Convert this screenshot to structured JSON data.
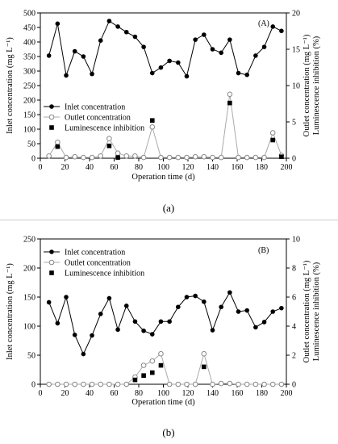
{
  "chart_data": [
    {
      "type": "line",
      "panel_label": "(A)",
      "sublabel": "(a)",
      "xlabel": "Operation time (d)",
      "ylabel_left": "Inlet concentration  (mg L⁻¹)",
      "ylabel_right": "Outlet concentration (mg L⁻¹)\nLuminescence inhibition (%)",
      "xlim": [
        0,
        200
      ],
      "xticks": [
        0,
        20,
        40,
        60,
        80,
        100,
        120,
        140,
        160,
        180,
        200
      ],
      "ylim_left": [
        0,
        500
      ],
      "yticks_left": [
        0,
        50,
        100,
        150,
        200,
        250,
        300,
        350,
        400,
        450,
        500
      ],
      "ylim_right": [
        0,
        20
      ],
      "yticks_right": [
        0,
        5,
        10,
        15,
        20
      ],
      "grid": false,
      "legend_position": "bottom-left",
      "series": [
        {
          "name": "Inlet concentration",
          "axis": "left",
          "marker": "filled-circle",
          "color": "#000000",
          "x": [
            7,
            14,
            21,
            28,
            35,
            42,
            49,
            56,
            63,
            70,
            77,
            84,
            91,
            98,
            105,
            112,
            119,
            126,
            133,
            140,
            147,
            154,
            161,
            168,
            175,
            182,
            189,
            196
          ],
          "y": [
            353,
            463,
            285,
            368,
            350,
            290,
            405,
            472,
            453,
            434,
            418,
            383,
            293,
            312,
            335,
            329,
            282,
            408,
            425,
            375,
            363,
            408,
            293,
            287,
            353,
            383,
            453,
            438
          ]
        },
        {
          "name": "Outlet concentration",
          "axis": "right",
          "marker": "open-circle",
          "color": "#999999",
          "x": [
            7,
            14,
            21,
            28,
            35,
            42,
            49,
            56,
            63,
            70,
            77,
            84,
            91,
            98,
            105,
            112,
            119,
            126,
            133,
            140,
            147,
            154,
            161,
            168,
            175,
            182,
            189,
            196
          ],
          "y": [
            0.3,
            2.2,
            0.1,
            0.2,
            0.1,
            0.1,
            0.3,
            2.7,
            0.7,
            0.3,
            0.3,
            0.1,
            4.3,
            0.1,
            0.1,
            0.1,
            0.1,
            0.2,
            0.2,
            0.1,
            0.1,
            8.8,
            0.1,
            0.1,
            0.1,
            0.1,
            3.5,
            0.4
          ]
        },
        {
          "name": "Luminescence inhibition",
          "axis": "right",
          "marker": "filled-square",
          "color": "#000000",
          "x": [
            14,
            56,
            63,
            91,
            154,
            189,
            196
          ],
          "y": [
            1.6,
            1.7,
            0.1,
            5.2,
            7.6,
            2.5,
            0.2
          ]
        }
      ]
    },
    {
      "type": "line",
      "panel_label": "(B)",
      "sublabel": "(b)",
      "xlabel": "Operation time (d)",
      "ylabel_left": "Inlet concentration  (mg L⁻¹)",
      "ylabel_right": "Outlet concentration (mg L⁻¹)\nLuminescence inhibition (%)",
      "xlim": [
        0,
        200
      ],
      "xticks": [
        0,
        20,
        40,
        60,
        80,
        100,
        120,
        140,
        160,
        180,
        200
      ],
      "ylim_left": [
        0,
        250
      ],
      "yticks_left": [
        0,
        50,
        100,
        150,
        200,
        250
      ],
      "ylim_right": [
        0,
        10
      ],
      "yticks_right": [
        0,
        2,
        4,
        6,
        8,
        10
      ],
      "grid": false,
      "legend_position": "top-left",
      "series": [
        {
          "name": "Inlet concentration",
          "axis": "left",
          "marker": "filled-circle",
          "color": "#000000",
          "x": [
            7,
            14,
            21,
            28,
            35,
            42,
            49,
            56,
            63,
            70,
            77,
            84,
            91,
            98,
            105,
            112,
            119,
            126,
            133,
            140,
            147,
            154,
            161,
            168,
            175,
            182,
            189,
            196
          ],
          "y": [
            141,
            105,
            150,
            85,
            52,
            84,
            121,
            148,
            94,
            135,
            108,
            92,
            86,
            108,
            108,
            133,
            150,
            152,
            142,
            93,
            133,
            158,
            125,
            127,
            98,
            107,
            125,
            131
          ]
        },
        {
          "name": "Outlet concentration",
          "axis": "right",
          "marker": "open-circle",
          "color": "#999999",
          "x": [
            7,
            14,
            21,
            28,
            35,
            42,
            49,
            56,
            63,
            70,
            77,
            84,
            91,
            98,
            105,
            112,
            119,
            126,
            133,
            140,
            147,
            154,
            161,
            168,
            175,
            182,
            189,
            196
          ],
          "y": [
            0,
            0,
            0,
            0,
            0,
            0,
            0,
            0,
            0,
            0,
            0.5,
            1.3,
            1.6,
            2.1,
            0,
            0,
            0,
            0,
            2.1,
            0,
            0.05,
            0.05,
            0,
            0,
            0,
            0,
            0,
            0
          ]
        },
        {
          "name": "Luminescence inhibition",
          "axis": "right",
          "marker": "filled-square",
          "color": "#000000",
          "x": [
            77,
            84,
            91,
            98,
            133
          ],
          "y": [
            0.3,
            0.6,
            0.8,
            1.3,
            1.2
          ]
        }
      ]
    }
  ]
}
